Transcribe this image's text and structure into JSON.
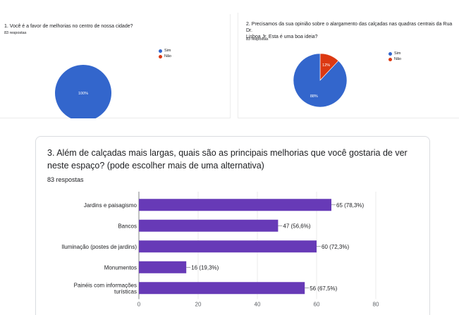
{
  "q1": {
    "title": "1. Você é a favor de melhorias no centro de nossa cidade?",
    "responses": "83 respostas",
    "legend": [
      {
        "label": "Sim",
        "color": "#3366cc"
      },
      {
        "label": "Não",
        "color": "#dc3912"
      }
    ]
  },
  "q2": {
    "title_line1": "2. Precisamos da sua opinião sobre o alargamento das calçadas nas quadras centrais da Rua Dr.",
    "title_line2": "Lisboa Jr. Esta é uma boa ideia?",
    "responses": "83 respostas",
    "legend": [
      {
        "label": "Sim",
        "color": "#3366cc"
      },
      {
        "label": "Não",
        "color": "#dc3912"
      }
    ]
  },
  "q3": {
    "title_line1": "3. Além de calçadas mais largas, quais são as principais melhorias que você gostaria de ver",
    "title_line2": "neste espaço? (pode escolher mais de uma alternativa)",
    "responses": "83 respostas"
  },
  "chart_data": [
    {
      "type": "pie",
      "categories": [
        "Sim",
        "Não"
      ],
      "values": [
        100,
        0
      ],
      "slice_labels": [
        "100%",
        ""
      ],
      "colors": [
        "#3366cc",
        "#dc3912"
      ],
      "legend_position": "right"
    },
    {
      "type": "pie",
      "categories": [
        "Sim",
        "Não"
      ],
      "values": [
        88,
        12
      ],
      "slice_labels": [
        "88%",
        "12%"
      ],
      "colors": [
        "#3366cc",
        "#dc3912"
      ],
      "legend_position": "right"
    },
    {
      "type": "bar",
      "orientation": "horizontal",
      "categories": [
        [
          "Jardins e paisagismo"
        ],
        [
          "Bancos"
        ],
        [
          "Iluminação (postes de jardins)"
        ],
        [
          "Monumentos"
        ],
        [
          "Painéis com informações",
          "turísticas"
        ]
      ],
      "values": [
        65,
        47,
        60,
        16,
        56
      ],
      "data_labels": [
        "65 (78,3%)",
        "47 (56,6%)",
        "60 (72,3%)",
        "16 (19,3%)",
        "56 (67,5%)"
      ],
      "xlim": [
        0,
        80
      ],
      "xticks": [
        "0",
        "20",
        "40",
        "60",
        "80"
      ],
      "grid": true,
      "color": "#673ab7"
    }
  ]
}
